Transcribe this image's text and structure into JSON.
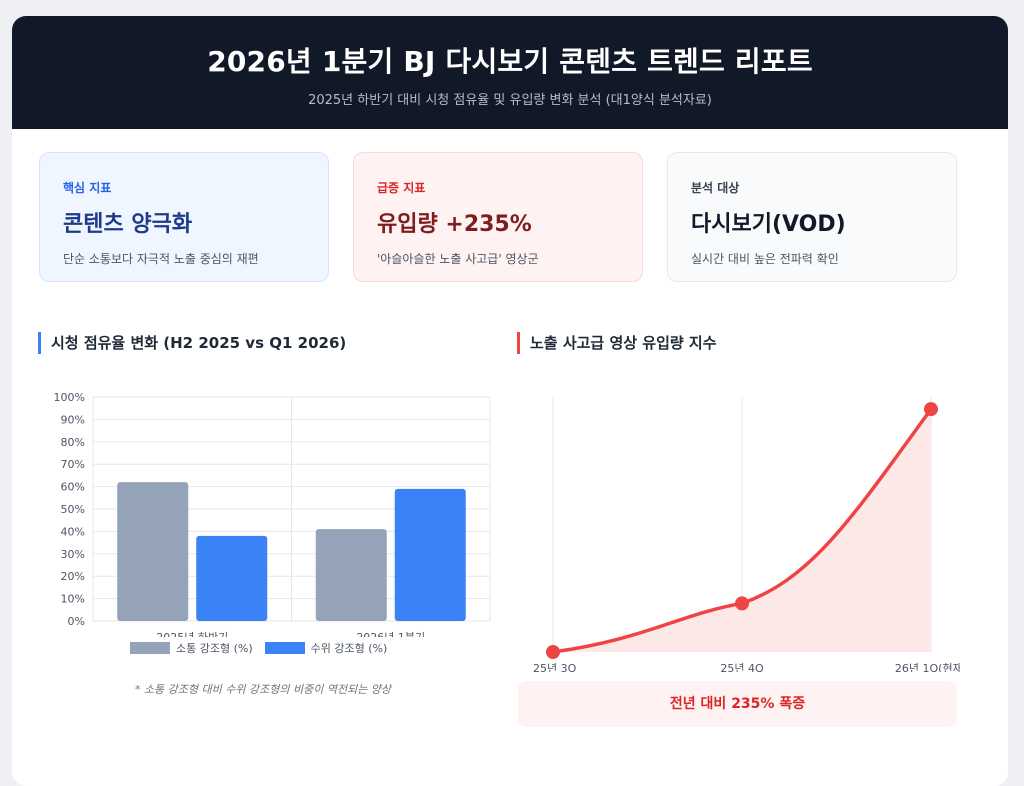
{
  "header": {
    "title": "2026년 1분기 BJ 다시보기 콘텐츠 트렌드 리포트",
    "subtitle": "2025년 하반기 대비 시청 점유율 및 유입량 변화 분석 (대1양식 분석자료)"
  },
  "kpis": [
    {
      "label": "핵심 지표",
      "value": "콘텐츠 양극화",
      "desc": "단순 소통보다 자극적 노출 중심의 재편"
    },
    {
      "label": "급증 지표",
      "value": "유입량 +235%",
      "desc": "'아슬아슬한 노출 사고급' 영상군"
    },
    {
      "label": "분석 대상",
      "value": "다시보기(VOD)",
      "desc": "실시간 대비 높은 전파력 확인"
    }
  ],
  "colors": {
    "gray_bar": "#94a3b8",
    "blue_bar": "#3b82f6",
    "red_line": "#ef4444",
    "red_fill": "#fde8e8"
  },
  "share_section": {
    "title": "시청 점유율 변화 (H2 2025 vs Q1 2026)",
    "note": "* 소통 강조형 대비 수위 강조형의 비중이 역전되는 양상"
  },
  "inflow_section": {
    "title": "노출 사고급 영상 유입량 지수",
    "callout": "전년 대비 235% 폭증"
  },
  "chart_data": [
    {
      "type": "bar",
      "title": "시청 점유율 변화 (H2 2025 vs Q1 2026)",
      "categories": [
        "2025년 하반기",
        "2026년 1분기"
      ],
      "series": [
        {
          "name": "소통 강조형 (%)",
          "values": [
            62,
            41
          ],
          "color": "#94a3b8"
        },
        {
          "name": "수위 강조형 (%)",
          "values": [
            38,
            59
          ],
          "color": "#3b82f6"
        }
      ],
      "ylim": [
        0,
        100
      ],
      "yticks": [
        "0%",
        "10%",
        "20%",
        "30%",
        "40%",
        "50%",
        "60%",
        "70%",
        "80%",
        "90%",
        "100%"
      ],
      "grid": true,
      "legend": "bottom"
    },
    {
      "type": "area",
      "title": "노출 사고급 영상 유입량 지수",
      "categories": [
        "25년 3Q",
        "25년 4Q",
        "26년 1Q(현재)"
      ],
      "series": [
        {
          "values": [
            0,
            20,
            100
          ],
          "color": "#ef4444"
        }
      ],
      "ylim": [
        0,
        105
      ],
      "grid": true
    }
  ]
}
